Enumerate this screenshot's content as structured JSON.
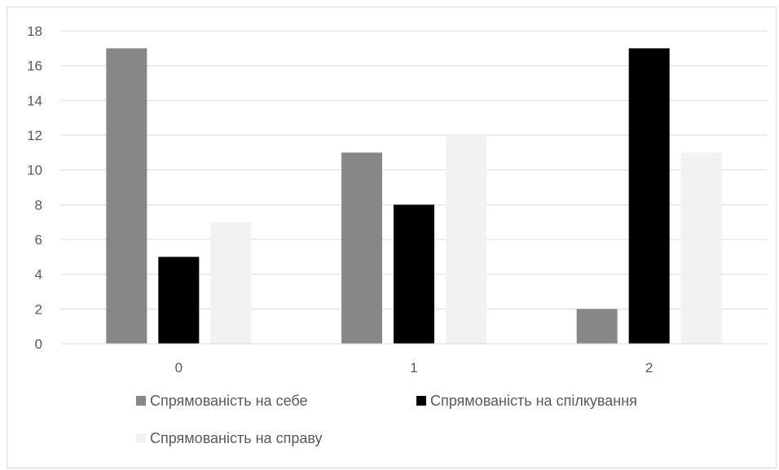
{
  "chart_data": {
    "type": "bar",
    "title": "",
    "xlabel": "",
    "ylabel": "",
    "categories": [
      "0",
      "1",
      "2"
    ],
    "series": [
      {
        "name": "Спрямованість на себе",
        "values": [
          17,
          11,
          2
        ],
        "color": "#878787"
      },
      {
        "name": "Спрямованість на спілкування",
        "values": [
          5,
          8,
          17
        ],
        "color": "#000000"
      },
      {
        "name": "Спрямованість на справу",
        "values": [
          7,
          12,
          11
        ],
        "color": "#f2f2f2"
      }
    ],
    "ylim": [
      0,
      18
    ],
    "yticks": [
      "0",
      "2",
      "4",
      "6",
      "8",
      "10",
      "12",
      "14",
      "16",
      "18"
    ],
    "grid": true,
    "legend_position": "bottom"
  }
}
